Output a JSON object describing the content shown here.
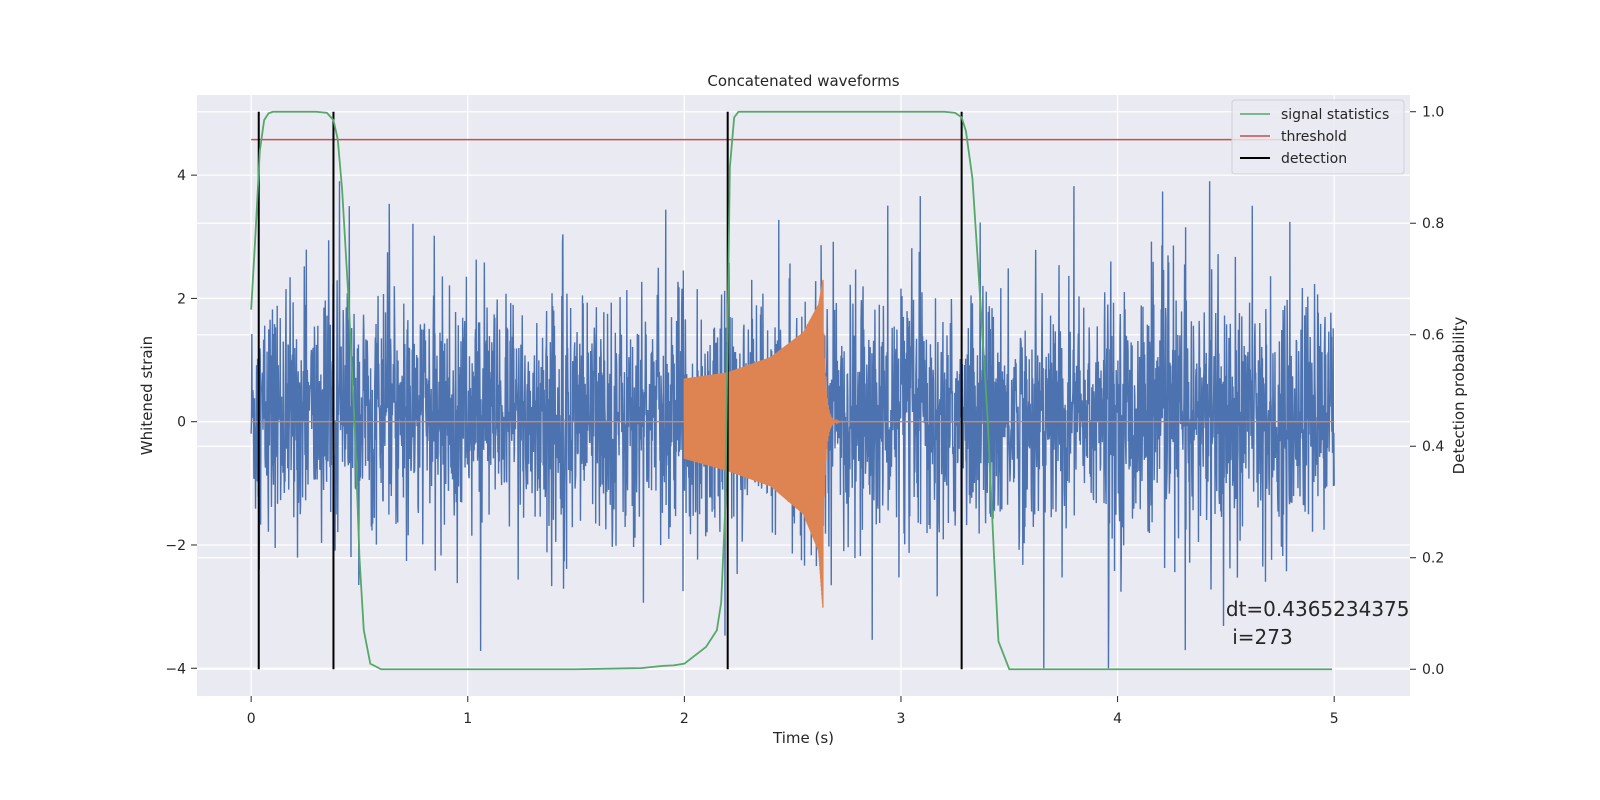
{
  "chart_data": {
    "type": "line",
    "title": "Concatenated waveforms",
    "xlabel": "Time (s)",
    "ylabel": "Whitened strain",
    "y2label": "Detection probability",
    "xlim": [
      -0.25,
      5.35
    ],
    "ylim": [
      -4.45,
      5.3
    ],
    "y2lim": [
      -0.048,
      1.03
    ],
    "xticks": [
      0,
      1,
      2,
      3,
      4,
      5
    ],
    "xtick_labels": [
      "0",
      "1",
      "2",
      "3",
      "4",
      "5"
    ],
    "yticks": [
      -4,
      -2,
      0,
      2,
      4
    ],
    "ytick_labels": [
      "−4",
      "−2",
      "0",
      "2",
      "4"
    ],
    "y2ticks": [
      0.0,
      0.2,
      0.4,
      0.6,
      0.8,
      1.0
    ],
    "y2tick_labels": [
      "0.0",
      "0.2",
      "0.4",
      "0.6",
      "0.8",
      "1.0"
    ],
    "grid": true,
    "legend_position": "top-right",
    "annotation": [
      "dt=0.4365234375",
      " i=273"
    ],
    "annotation_pos": [
      4.5,
      -3.15
    ],
    "noise": {
      "color": "#4c72b0",
      "t_range": [
        0,
        5
      ],
      "typical_range": [
        -2.5,
        3.0
      ],
      "max": 3.9,
      "min": -4.0
    },
    "chirp": {
      "color": "#dd8452",
      "t_start": 2.0,
      "t_merger": 2.64,
      "t_end": 5.0,
      "upper_envelope": [
        [
          2.0,
          0.7
        ],
        [
          2.2,
          0.8
        ],
        [
          2.4,
          1.05
        ],
        [
          2.55,
          1.45
        ],
        [
          2.62,
          1.9
        ],
        [
          2.64,
          2.3
        ]
      ],
      "lower_envelope": [
        [
          2.0,
          -0.6
        ],
        [
          2.2,
          -0.8
        ],
        [
          2.4,
          -1.05
        ],
        [
          2.55,
          -1.5
        ],
        [
          2.62,
          -2.1
        ],
        [
          2.64,
          -3.05
        ]
      ]
    },
    "series": [
      {
        "name": "signal statistics",
        "color": "#55a868",
        "axis": "right",
        "x": [
          0,
          0.02,
          0.04,
          0.06,
          0.08,
          0.1,
          0.15,
          0.3,
          0.35,
          0.38,
          0.4,
          0.42,
          0.45,
          0.48,
          0.5,
          0.52,
          0.55,
          0.6,
          1.5,
          1.8,
          1.9,
          1.95,
          2.0,
          2.05,
          2.1,
          2.15,
          2.17,
          2.19,
          2.2,
          2.21,
          2.23,
          2.25,
          2.3,
          3.2,
          3.25,
          3.28,
          3.3,
          3.33,
          3.36,
          3.4,
          3.43,
          3.45,
          3.5,
          4.99
        ],
        "values": [
          0.645,
          0.78,
          0.93,
          0.985,
          0.997,
          1.0,
          1.0,
          1.0,
          0.998,
          0.985,
          0.95,
          0.86,
          0.66,
          0.42,
          0.2,
          0.07,
          0.01,
          0.0,
          0.0,
          0.002,
          0.006,
          0.007,
          0.01,
          0.025,
          0.04,
          0.07,
          0.12,
          0.3,
          0.62,
          0.9,
          0.99,
          1.0,
          1.0,
          1.0,
          0.998,
          0.99,
          0.965,
          0.88,
          0.7,
          0.45,
          0.2,
          0.05,
          0.0,
          0.0
        ]
      },
      {
        "name": "threshold",
        "color": "#c44e52",
        "axis": "right",
        "x": [
          0,
          5
        ],
        "values": [
          0.95,
          0.95
        ]
      },
      {
        "name": "detection",
        "color": "#000000",
        "axis": "right",
        "x": [
          0.035,
          0.38,
          2.2,
          3.28
        ],
        "values": [
          1.0,
          1.0,
          1.0,
          1.0
        ]
      }
    ]
  }
}
